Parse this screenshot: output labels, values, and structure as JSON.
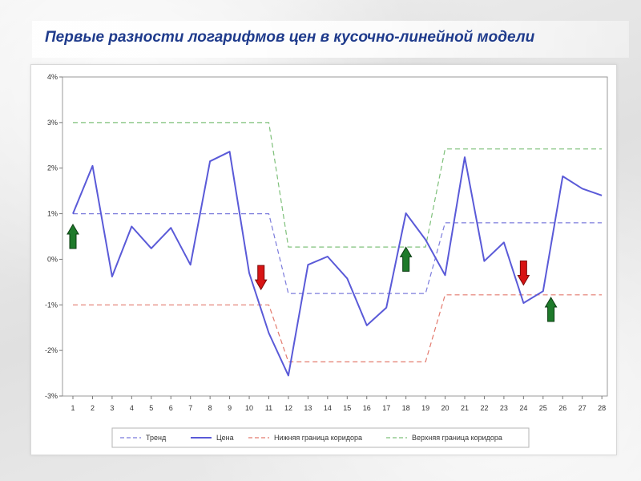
{
  "page": {
    "title": "Первые разности логарифмов цен в кусочно-линейной модели"
  },
  "colors": {
    "trend": "#7b7bdc",
    "price": "#5a5ad8",
    "lower": "#e37a6e",
    "upper": "#7ec07a",
    "arrow_up": "#1e7a2a",
    "arrow_down": "#d81414"
  },
  "chart_data": {
    "type": "line",
    "title": "",
    "xlabel": "",
    "ylabel": "",
    "x": [
      1,
      2,
      3,
      4,
      5,
      6,
      7,
      8,
      9,
      10,
      11,
      12,
      13,
      14,
      15,
      16,
      17,
      18,
      19,
      20,
      21,
      22,
      23,
      24,
      25,
      26,
      27,
      28
    ],
    "ylim": [
      -3,
      4
    ],
    "y_unit": "%",
    "y_ticks": [
      "4%",
      "3%",
      "2%",
      "1%",
      "0%",
      "-1%",
      "-2%",
      "-3%"
    ],
    "y_tick_values": [
      4,
      3,
      2,
      1,
      0,
      -1,
      -2,
      -3
    ],
    "grid": false,
    "legend_position": "bottom",
    "series": [
      {
        "name": "Тренд",
        "style": "dashed",
        "values": [
          1,
          1,
          1,
          1,
          1,
          1,
          1,
          1,
          1,
          1,
          1,
          -0.75,
          -0.75,
          -0.75,
          -0.75,
          -0.75,
          -0.75,
          -0.75,
          -0.75,
          0.8,
          0.8,
          0.8,
          0.8,
          0.8,
          0.8,
          0.8,
          0.8,
          0.8
        ]
      },
      {
        "name": "Цена",
        "style": "solid",
        "values": [
          1.0,
          2.05,
          -0.38,
          0.72,
          0.24,
          0.69,
          -0.12,
          2.15,
          2.36,
          -0.3,
          -1.62,
          -2.55,
          -0.12,
          0.06,
          -0.42,
          -1.45,
          -1.06,
          1.01,
          0.43,
          -0.35,
          2.24,
          -0.04,
          0.37,
          -0.96,
          -0.7,
          1.82,
          1.55,
          1.4
        ]
      },
      {
        "name": "Нижняя граница коридора",
        "style": "dashed",
        "values": [
          -1,
          -1,
          -1,
          -1,
          -1,
          -1,
          -1,
          -1,
          -1,
          -1,
          -1,
          -2.25,
          -2.25,
          -2.25,
          -2.25,
          -2.25,
          -2.25,
          -2.25,
          -2.25,
          -0.78,
          -0.78,
          -0.78,
          -0.78,
          -0.78,
          -0.78,
          -0.78,
          -0.78,
          -0.78
        ]
      },
      {
        "name": "Верхняя граница коридора",
        "style": "dashed",
        "values": [
          3,
          3,
          3,
          3,
          3,
          3,
          3,
          3,
          3,
          3,
          3,
          0.27,
          0.27,
          0.27,
          0.27,
          0.27,
          0.27,
          0.27,
          0.27,
          2.42,
          2.42,
          2.42,
          2.42,
          2.42,
          2.42,
          2.42,
          2.42,
          2.42
        ]
      }
    ],
    "annotations": [
      {
        "type": "arrow-up",
        "x": 1,
        "y": 0.5
      },
      {
        "type": "arrow-down",
        "x": 10.6,
        "y": -0.4
      },
      {
        "type": "arrow-up",
        "x": 18,
        "y": 0.0
      },
      {
        "type": "arrow-down",
        "x": 24,
        "y": -0.3
      },
      {
        "type": "arrow-up",
        "x": 25.4,
        "y": -1.1
      }
    ]
  }
}
